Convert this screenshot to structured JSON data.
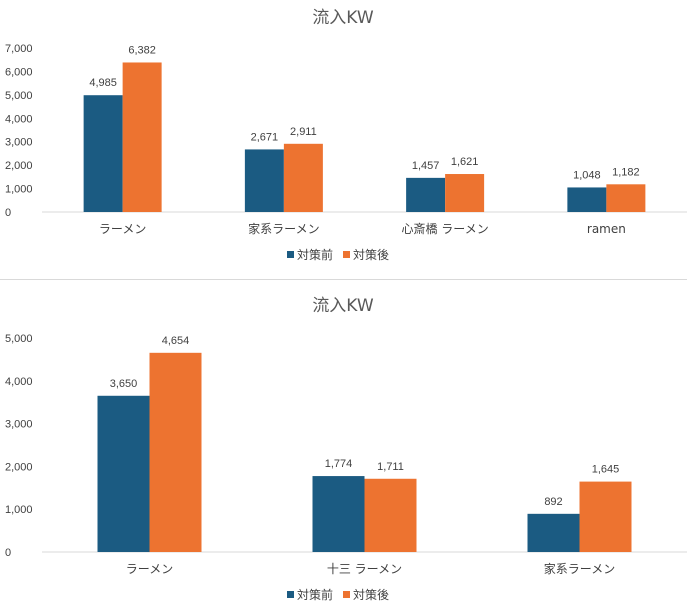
{
  "colors": {
    "before": "#1b5b82",
    "after": "#ed7330",
    "axis": "#d9d9d9"
  },
  "chart_data": [
    {
      "type": "bar",
      "title": "流入KW",
      "categories": [
        "ラーメン",
        "家系ラーメン",
        "心斎橋 ラーメン",
        "ramen"
      ],
      "series": [
        {
          "name": "対策前",
          "values": [
            4985,
            2671,
            1457,
            1048
          ],
          "labels": [
            "4,985",
            "2,671",
            "1,457",
            "1,048"
          ]
        },
        {
          "name": "対策後",
          "values": [
            6382,
            2911,
            1621,
            1182
          ],
          "labels": [
            "6,382",
            "2,911",
            "1,621",
            "1,182"
          ]
        }
      ],
      "ylim": [
        0,
        7000
      ],
      "yticks": [
        0,
        1000,
        2000,
        3000,
        4000,
        5000,
        6000,
        7000
      ],
      "yticklabels": [
        "0",
        "1,000",
        "2,000",
        "3,000",
        "4,000",
        "5,000",
        "6,000",
        "7,000"
      ],
      "grid": false,
      "legend": "bottom"
    },
    {
      "type": "bar",
      "title": "流入KW",
      "categories": [
        "ラーメン",
        "十三 ラーメン",
        "家系ラーメン"
      ],
      "series": [
        {
          "name": "対策前",
          "values": [
            3650,
            1774,
            892
          ],
          "labels": [
            "3,650",
            "1,774",
            "892"
          ]
        },
        {
          "name": "対策後",
          "values": [
            4654,
            1711,
            1645
          ],
          "labels": [
            "4,654",
            "1,711",
            "1,645"
          ]
        }
      ],
      "ylim": [
        0,
        5000
      ],
      "yticks": [
        0,
        1000,
        2000,
        3000,
        4000,
        5000
      ],
      "yticklabels": [
        "0",
        "1,000",
        "2,000",
        "3,000",
        "4,000",
        "5,000"
      ],
      "grid": false,
      "legend": "bottom"
    }
  ]
}
